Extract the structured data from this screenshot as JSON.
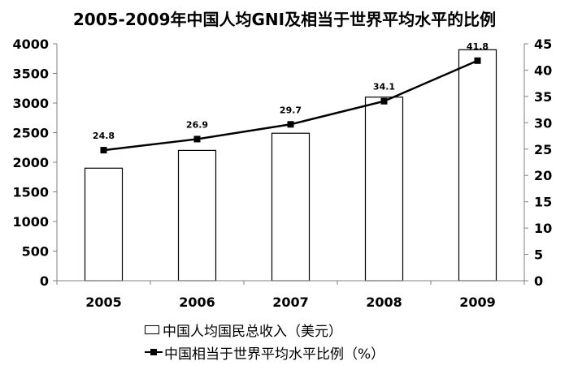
{
  "chart_data": {
    "type": "bar+line",
    "title": "2005-2009年中国人均GNI及相当于世界平均水平的比例",
    "categories": [
      "2005",
      "2006",
      "2007",
      "2008",
      "2009"
    ],
    "bar_series": {
      "name": "中国人均国民总收入（美元）",
      "values": [
        1900,
        2200,
        2490,
        3100,
        3900
      ],
      "axis": "left",
      "ylim": [
        0,
        4000
      ],
      "ticks": [
        "0",
        "500",
        "1000",
        "1500",
        "2000",
        "2500",
        "3000",
        "3500",
        "4000"
      ]
    },
    "line_series": {
      "name": "中国相当于世界平均水平比例（%）",
      "values": [
        24.8,
        26.9,
        29.7,
        34.1,
        41.8
      ],
      "labels": [
        "24.8",
        "26.9",
        "29.7",
        "34.1",
        "41.8"
      ],
      "axis": "right",
      "ylim": [
        0,
        45
      ],
      "ticks": [
        "0",
        "5",
        "10",
        "15",
        "20",
        "25",
        "30",
        "35",
        "40",
        "45"
      ]
    },
    "grid": false,
    "legend_position": "bottom"
  }
}
